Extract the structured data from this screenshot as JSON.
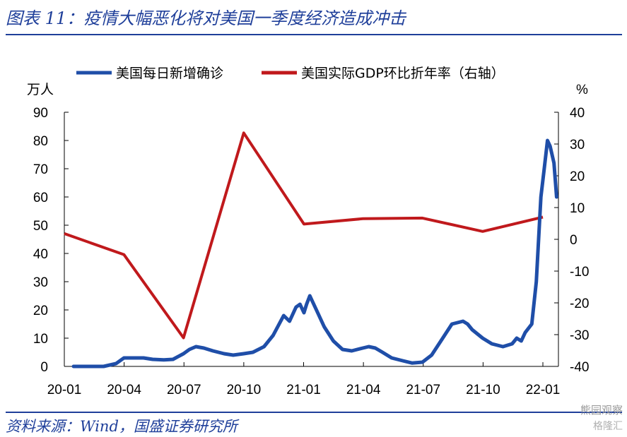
{
  "header": {
    "title": "图表 11：疫情大幅恶化将对美国一季度经济造成冲击"
  },
  "footer": {
    "source": "资料来源：Wind，国盛证券研究所"
  },
  "watermark": {
    "primary": "熊园观察",
    "secondary": "格隆汇"
  },
  "chart_data": {
    "type": "line",
    "x_ticks": [
      "20-01",
      "20-04",
      "20-07",
      "20-10",
      "21-01",
      "21-04",
      "21-07",
      "21-10",
      "22-01"
    ],
    "y_left": {
      "unit_label": "万人",
      "ticks": [
        "90",
        "80",
        "70",
        "60",
        "50",
        "40",
        "30",
        "20",
        "10",
        "0"
      ],
      "ylim": [
        0,
        90
      ]
    },
    "y_right": {
      "unit_label": "%",
      "ticks": [
        "40",
        "30",
        "20",
        "10",
        "0",
        "-10",
        "-20",
        "-30",
        "-40"
      ],
      "ylim": [
        -40,
        40
      ]
    },
    "legend_position": "top",
    "grid": false,
    "series": [
      {
        "name": "美国每日新增确诊",
        "axis": "left",
        "color": "#1f4ea8",
        "x": [
          "2020-01-15",
          "2020-03-01",
          "2020-03-20",
          "2020-04-01",
          "2020-04-15",
          "2020-05-01",
          "2020-05-15",
          "2020-06-01",
          "2020-06-15",
          "2020-07-01",
          "2020-07-10",
          "2020-07-20",
          "2020-08-01",
          "2020-08-15",
          "2020-09-01",
          "2020-09-15",
          "2020-10-01",
          "2020-10-15",
          "2020-11-01",
          "2020-11-15",
          "2020-12-01",
          "2020-12-10",
          "2020-12-20",
          "2020-12-26",
          "2021-01-01",
          "2021-01-05",
          "2021-01-10",
          "2021-01-20",
          "2021-02-01",
          "2021-02-15",
          "2021-03-01",
          "2021-03-15",
          "2021-04-01",
          "2021-04-10",
          "2021-04-20",
          "2021-05-01",
          "2021-05-15",
          "2021-06-01",
          "2021-06-15",
          "2021-07-01",
          "2021-07-15",
          "2021-08-01",
          "2021-08-15",
          "2021-09-01",
          "2021-09-08",
          "2021-09-15",
          "2021-10-01",
          "2021-10-15",
          "2021-11-01",
          "2021-11-15",
          "2021-11-22",
          "2021-11-29",
          "2021-12-05",
          "2021-12-15",
          "2021-12-22",
          "2021-12-29",
          "2022-01-03",
          "2022-01-08",
          "2022-01-12",
          "2022-01-18",
          "2022-01-22"
        ],
        "values": [
          0,
          0,
          1,
          3,
          3,
          3,
          2.5,
          2.3,
          2.5,
          4.5,
          6,
          7,
          6.5,
          5.5,
          4.5,
          4,
          4.5,
          5,
          7,
          11,
          18,
          16,
          21,
          22,
          19,
          22,
          25,
          20,
          14,
          9,
          6,
          5.5,
          6.5,
          7,
          6.5,
          5,
          3,
          2,
          1.2,
          1.5,
          4,
          10,
          15,
          16,
          15,
          13,
          10,
          8,
          7,
          8,
          10,
          9,
          12,
          15,
          30,
          60,
          70,
          80,
          78,
          72,
          60
        ]
      },
      {
        "name": "美国实际GDP环比折年率（右轴）",
        "axis": "right",
        "color": "#c0191c",
        "x": [
          "2020-01-01",
          "2020-04-01",
          "2020-07-01",
          "2020-10-01",
          "2021-01-01",
          "2021-04-01",
          "2021-07-01",
          "2021-10-01",
          "2022-01-01"
        ],
        "values": [
          1.8,
          -4.8,
          -31.0,
          33.5,
          4.8,
          6.5,
          6.7,
          2.5,
          7.0
        ]
      }
    ]
  }
}
